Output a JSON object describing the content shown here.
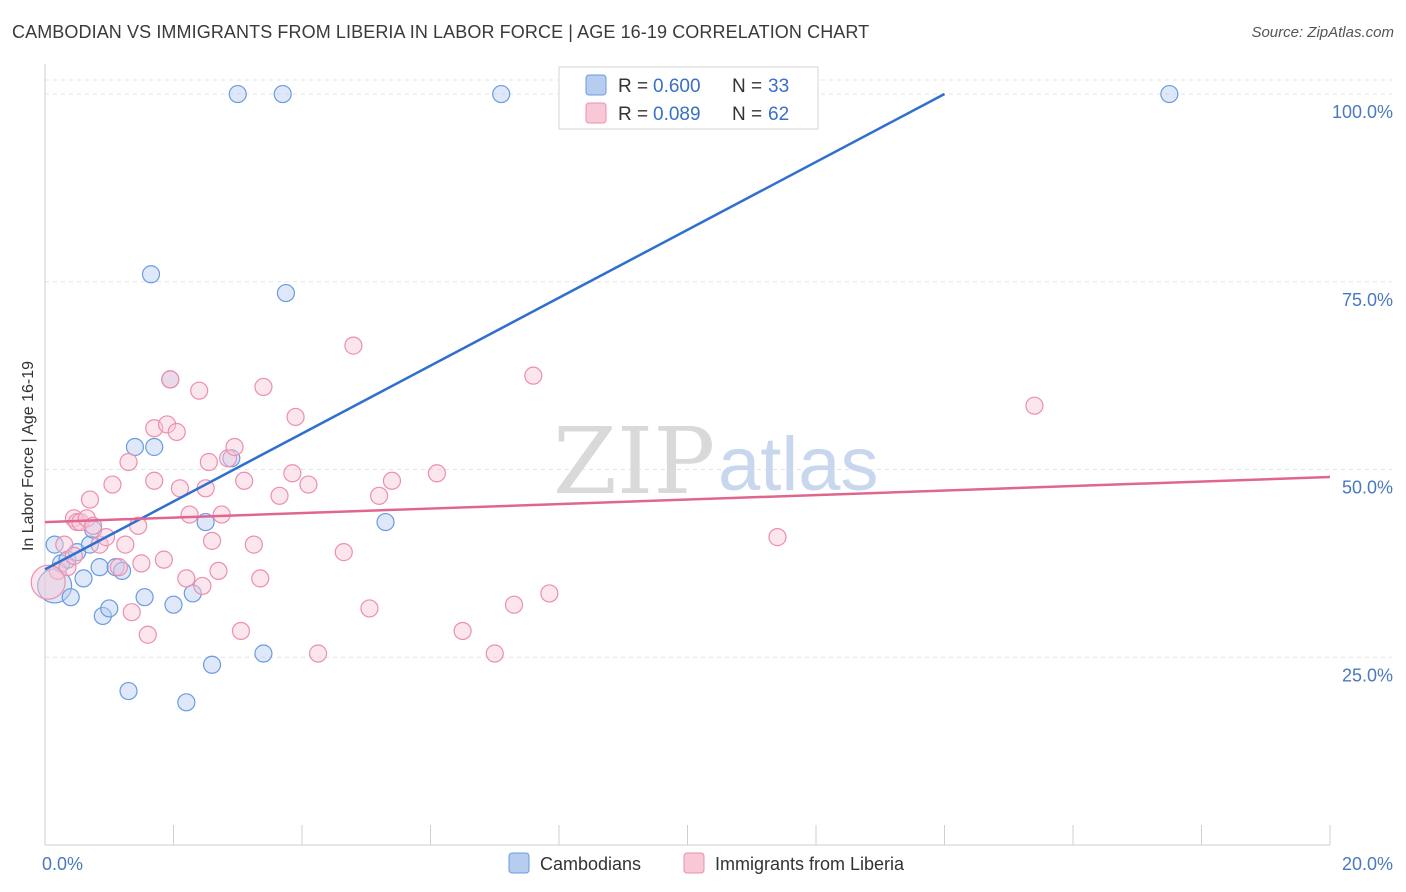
{
  "title": "CAMBODIAN VS IMMIGRANTS FROM LIBERIA IN LABOR FORCE | AGE 16-19 CORRELATION CHART",
  "source": "Source: ZipAtlas.com",
  "watermark": {
    "zip": "ZIP",
    "atlas": "atlas"
  },
  "chart_data": {
    "type": "scatter",
    "ylabel": "In Labor Force | Age 16-19",
    "xlim": [
      0,
      20
    ],
    "ylim": [
      0,
      104
    ],
    "x_tick_labels": [
      "0.0%",
      "20.0%"
    ],
    "y_ticks": [
      25,
      50,
      75,
      100
    ],
    "y_tick_labels": [
      "25.0%",
      "50.0%",
      "75.0%",
      "100.0%"
    ],
    "colors": {
      "cambodians": "#6b9be0",
      "liberia": "#ec8fad",
      "cambodians_line": "#2f6fd0",
      "liberia_line": "#e0668f"
    },
    "legend": {
      "r_label": "R =",
      "n_label": "N =",
      "entries": [
        {
          "r": "0.600",
          "n": "33"
        },
        {
          "r": "0.089",
          "n": "62"
        }
      ]
    },
    "series": [
      {
        "name": "Cambodians",
        "trend": {
          "x": [
            0.0,
            14.0
          ],
          "y": [
            36.7,
            100.0
          ]
        },
        "points": [
          [
            0.15,
            34.5
          ],
          [
            0.15,
            40.0
          ],
          [
            0.25,
            37.5
          ],
          [
            0.35,
            38.0
          ],
          [
            0.4,
            33.0
          ],
          [
            0.5,
            39.0
          ],
          [
            0.6,
            35.5
          ],
          [
            0.7,
            40.0
          ],
          [
            0.75,
            42.0
          ],
          [
            0.85,
            37.0
          ],
          [
            0.9,
            30.5
          ],
          [
            1.0,
            31.5
          ],
          [
            1.1,
            37.0
          ],
          [
            1.2,
            36.5
          ],
          [
            1.3,
            20.5
          ],
          [
            1.4,
            53.0
          ],
          [
            1.55,
            33.0
          ],
          [
            1.65,
            76.0
          ],
          [
            1.7,
            53.0
          ],
          [
            1.95,
            62.0
          ],
          [
            2.0,
            32.0
          ],
          [
            2.2,
            19.0
          ],
          [
            2.3,
            33.5
          ],
          [
            2.5,
            43.0
          ],
          [
            2.6,
            24.0
          ],
          [
            2.9,
            51.5
          ],
          [
            3.0,
            100.0
          ],
          [
            3.4,
            25.5
          ],
          [
            3.7,
            100.0
          ],
          [
            3.75,
            73.5
          ],
          [
            5.3,
            43.0
          ],
          [
            7.1,
            100.0
          ],
          [
            17.5,
            100.0
          ]
        ]
      },
      {
        "name": "Immigrants from Liberia",
        "trend": {
          "x": [
            0.0,
            20.0
          ],
          "y": [
            43.0,
            49.0
          ]
        },
        "points": [
          [
            0.2,
            36.5
          ],
          [
            0.3,
            40.0
          ],
          [
            0.35,
            37.0
          ],
          [
            0.45,
            38.5
          ],
          [
            0.45,
            43.5
          ],
          [
            0.5,
            43.0
          ],
          [
            0.55,
            43.0
          ],
          [
            0.65,
            43.5
          ],
          [
            0.7,
            46.0
          ],
          [
            0.75,
            42.5
          ],
          [
            0.85,
            40.0
          ],
          [
            0.95,
            41.0
          ],
          [
            1.05,
            48.0
          ],
          [
            1.15,
            37.0
          ],
          [
            1.25,
            40.0
          ],
          [
            1.3,
            51.0
          ],
          [
            1.35,
            31.0
          ],
          [
            1.45,
            42.5
          ],
          [
            1.5,
            37.5
          ],
          [
            1.6,
            28.0
          ],
          [
            1.7,
            48.5
          ],
          [
            1.7,
            55.5
          ],
          [
            1.85,
            38.0
          ],
          [
            1.9,
            56.0
          ],
          [
            1.95,
            62.0
          ],
          [
            2.05,
            55.0
          ],
          [
            2.1,
            47.5
          ],
          [
            2.2,
            35.5
          ],
          [
            2.25,
            44.0
          ],
          [
            2.4,
            60.5
          ],
          [
            2.45,
            34.5
          ],
          [
            2.5,
            47.5
          ],
          [
            2.55,
            51.0
          ],
          [
            2.6,
            40.5
          ],
          [
            2.7,
            36.5
          ],
          [
            2.75,
            44.0
          ],
          [
            2.85,
            51.5
          ],
          [
            2.95,
            53.0
          ],
          [
            3.1,
            48.5
          ],
          [
            3.05,
            28.5
          ],
          [
            3.25,
            40.0
          ],
          [
            3.35,
            35.5
          ],
          [
            3.4,
            61.0
          ],
          [
            3.65,
            46.5
          ],
          [
            3.85,
            49.5
          ],
          [
            3.9,
            57.0
          ],
          [
            4.1,
            48.0
          ],
          [
            4.25,
            25.5
          ],
          [
            4.65,
            39.0
          ],
          [
            4.8,
            66.5
          ],
          [
            5.05,
            31.5
          ],
          [
            5.2,
            46.5
          ],
          [
            5.4,
            48.5
          ],
          [
            6.1,
            49.5
          ],
          [
            6.5,
            28.5
          ],
          [
            7.0,
            25.5
          ],
          [
            7.3,
            32.0
          ],
          [
            7.6,
            62.5
          ],
          [
            7.85,
            33.5
          ],
          [
            11.4,
            41.0
          ],
          [
            15.4,
            58.5
          ],
          [
            0.05,
            35.0
          ]
        ]
      }
    ]
  },
  "bottom_legend": [
    "Cambodians",
    "Immigrants from Liberia"
  ]
}
